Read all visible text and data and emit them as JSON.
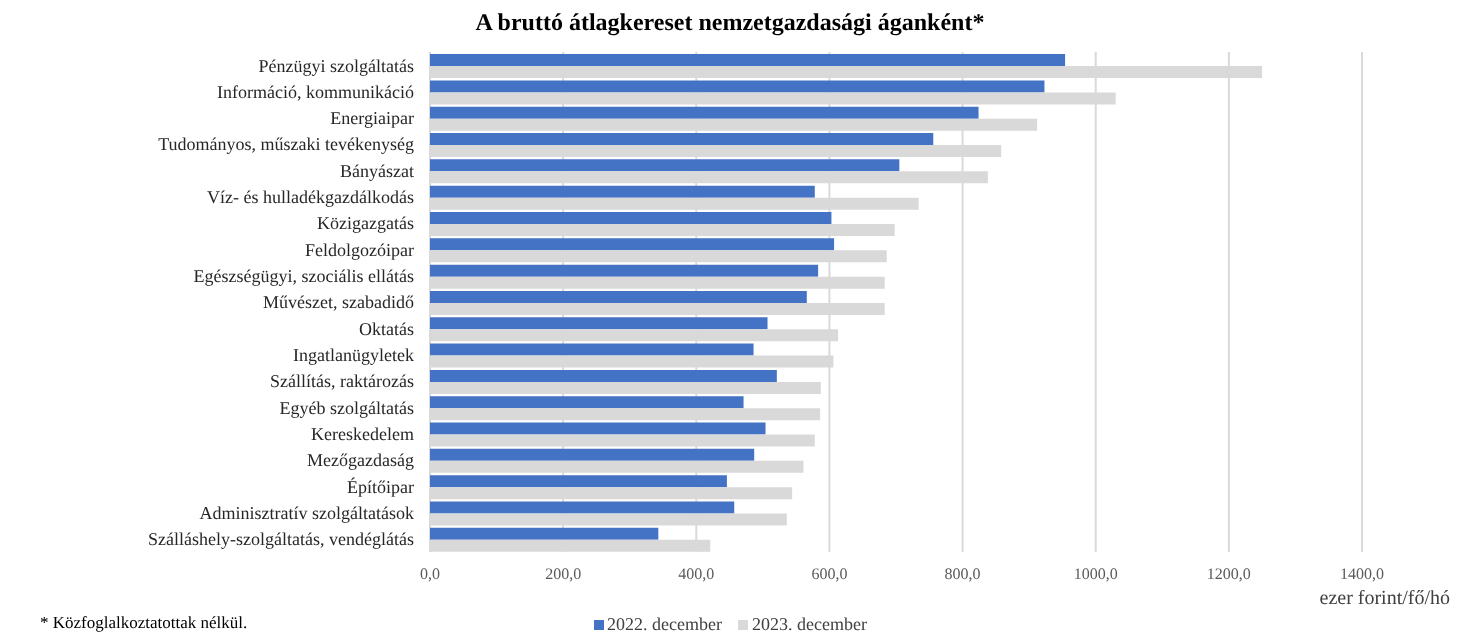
{
  "chart_data": {
    "type": "bar",
    "orientation": "horizontal",
    "title": "A bruttó átlagkereset nemzetgazdasági áganként*",
    "categories": [
      "Pénzügyi szolgáltatás",
      "Információ, kommunikáció",
      "Energiaipar",
      "Tudományos, műszaki tevékenység",
      "Bányászat",
      "Víz- és hulladékgazdálkodás",
      "Közigazgatás",
      "Feldolgozóipar",
      "Egészségügyi, szociális ellátás",
      "Művészet, szabadidő",
      "Oktatás",
      "Ingatlanügyletek",
      "Szállítás, raktározás",
      "Egyéb szolgáltatás",
      "Kereskedelem",
      "Mezőgazdaság",
      "Építőipar",
      "Adminisztratív szolgáltatások",
      "Szálláshely-szolgáltatás, vendéglátás"
    ],
    "series": [
      {
        "name": "2022. december",
        "color": "#4472c4",
        "values": [
          954,
          923,
          824,
          756,
          705,
          578,
          603,
          607,
          583,
          566,
          507,
          486,
          521,
          471,
          504,
          487,
          446,
          457,
          343
        ]
      },
      {
        "name": "2023. december",
        "color": "#d9d9d9",
        "values": [
          1250,
          1030,
          912,
          858,
          838,
          734,
          698,
          686,
          683,
          683,
          613,
          606,
          587,
          586,
          578,
          561,
          544,
          536,
          421
        ]
      }
    ],
    "xlim": [
      0,
      1400
    ],
    "xticks": [
      {
        "value": 0,
        "label": "0,0"
      },
      {
        "value": 200,
        "label": "200,0"
      },
      {
        "value": 400,
        "label": "400,0"
      },
      {
        "value": 600,
        "label": "600,0"
      },
      {
        "value": 800,
        "label": "800,0"
      },
      {
        "value": 1000,
        "label": "1000,0"
      },
      {
        "value": 1200,
        "label": "1200,0"
      },
      {
        "value": 1400,
        "label": "1400,0"
      }
    ],
    "xlabel": "ezer forint/fő/hó",
    "annotations": [
      "* Közfoglalkoztatottak nélkül."
    ],
    "grid": "x",
    "legend": "bottom"
  }
}
